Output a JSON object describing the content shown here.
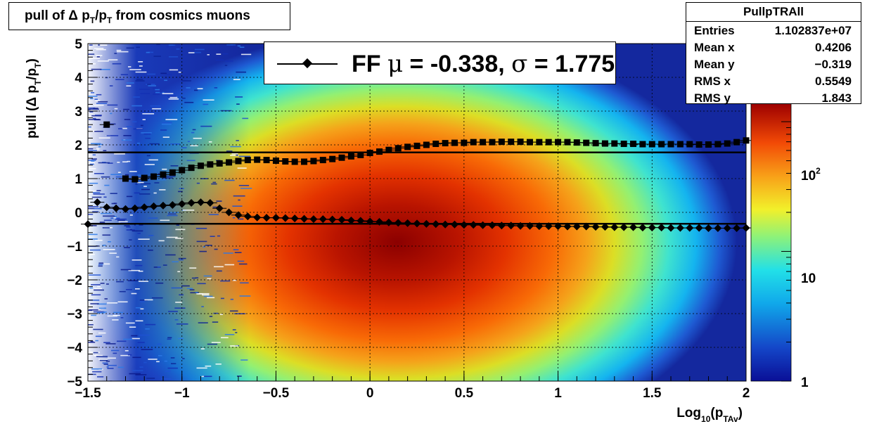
{
  "title": "pull of Δ p_T/p_T from cosmics muons",
  "title_parts": {
    "pre": "pull of Δ p",
    "sub1": "T",
    "mid": "/p",
    "sub2": "T",
    "post": " from cosmics muons"
  },
  "stats": {
    "name": "PullpTRAll",
    "rows": [
      {
        "label": "Entries",
        "value": "1.102837e+07"
      },
      {
        "label": "Mean x",
        "value": "0.4206"
      },
      {
        "label": "Mean y",
        "value": "−0.319"
      },
      {
        "label": "RMS x",
        "value": "0.5549"
      },
      {
        "label": "RMS y",
        "value": "1.843"
      }
    ]
  },
  "legend": {
    "prefix": "FF ",
    "mu": "μ",
    "mid": " = -0.338, ",
    "sigma": "σ",
    "post": " =   1.775"
  },
  "axes": {
    "x_label": {
      "pre": "Log",
      "sub": "10",
      "mid": "(p",
      "sub2": "TAv",
      "post": ")"
    },
    "y_label": {
      "pre": "pull (Δ p",
      "sub1": "T",
      "mid": "/p",
      "sub2": "T",
      "post": ")"
    },
    "x_ticks": [
      "−1.5",
      "−1",
      "−0.5",
      "0",
      "0.5",
      "1",
      "1.5",
      "2"
    ],
    "y_ticks": [
      "−5",
      "−4",
      "−3",
      "−2",
      "−1",
      "0",
      "1",
      "2",
      "3",
      "4",
      "5"
    ],
    "z_ticks": [
      "1",
      "10",
      "10^2"
    ]
  },
  "colors": {
    "frame": "#000000",
    "markers": "#000000"
  },
  "chart_data": {
    "type": "heatmap",
    "title": "pull of Δ p_T/p_T from cosmics muons",
    "xlabel": "Log10(p_TAv)",
    "ylabel": "pull (Δ p_T/p_T)",
    "xlim": [
      -1.5,
      2.0
    ],
    "ylim": [
      -5,
      5
    ],
    "z_scale": "log",
    "zlim": [
      1,
      400
    ],
    "colormap": "rainbow",
    "grid": true,
    "legend_position": "top-center",
    "density_peak": {
      "x": 0.3,
      "y": -0.8
    },
    "fit_lines": [
      {
        "name": "FF μ",
        "y": -0.338
      },
      {
        "name": "FF σ",
        "y": 1.775
      }
    ],
    "series": [
      {
        "marker": "square",
        "x": [
          -1.4,
          -1.3,
          -1.25,
          -1.2,
          -1.15,
          -1.1,
          -1.05,
          -1.0,
          -0.95,
          -0.9,
          -0.85,
          -0.8,
          -0.75,
          -0.7,
          -0.65,
          -0.6,
          -0.55,
          -0.5,
          -0.45,
          -0.4,
          -0.35,
          -0.3,
          -0.25,
          -0.2,
          -0.15,
          -0.1,
          -0.05,
          0.0,
          0.05,
          0.1,
          0.15,
          0.2,
          0.25,
          0.3,
          0.35,
          0.4,
          0.45,
          0.5,
          0.55,
          0.6,
          0.65,
          0.7,
          0.75,
          0.8,
          0.85,
          0.9,
          0.95,
          1.0,
          1.05,
          1.1,
          1.15,
          1.2,
          1.25,
          1.3,
          1.35,
          1.4,
          1.45,
          1.5,
          1.55,
          1.6,
          1.65,
          1.7,
          1.75,
          1.8,
          1.85,
          1.9,
          1.95,
          2.0
        ],
        "y": [
          2.6,
          1.0,
          0.98,
          1.02,
          1.06,
          1.12,
          1.18,
          1.25,
          1.32,
          1.38,
          1.42,
          1.45,
          1.48,
          1.52,
          1.55,
          1.56,
          1.55,
          1.53,
          1.51,
          1.5,
          1.5,
          1.52,
          1.55,
          1.58,
          1.62,
          1.66,
          1.7,
          1.76,
          1.8,
          1.85,
          1.9,
          1.94,
          1.97,
          2.0,
          2.03,
          2.05,
          2.06,
          2.06,
          2.08,
          2.08,
          2.08,
          2.09,
          2.09,
          2.09,
          2.08,
          2.08,
          2.08,
          2.08,
          2.08,
          2.07,
          2.06,
          2.05,
          2.04,
          2.04,
          2.03,
          2.03,
          2.02,
          2.02,
          2.02,
          2.02,
          2.02,
          2.02,
          2.01,
          2.01,
          2.02,
          2.04,
          2.08,
          2.13
        ]
      },
      {
        "marker": "diamond",
        "x": [
          -1.5,
          -1.45,
          -1.4,
          -1.35,
          -1.3,
          -1.25,
          -1.2,
          -1.15,
          -1.1,
          -1.05,
          -1.0,
          -0.95,
          -0.9,
          -0.85,
          -0.8,
          -0.75,
          -0.7,
          -0.65,
          -0.6,
          -0.55,
          -0.5,
          -0.45,
          -0.4,
          -0.35,
          -0.3,
          -0.25,
          -0.2,
          -0.15,
          -0.1,
          -0.05,
          0.0,
          0.05,
          0.1,
          0.15,
          0.2,
          0.25,
          0.3,
          0.35,
          0.4,
          0.45,
          0.5,
          0.55,
          0.6,
          0.65,
          0.7,
          0.75,
          0.8,
          0.85,
          0.9,
          0.95,
          1.0,
          1.05,
          1.1,
          1.15,
          1.2,
          1.25,
          1.3,
          1.35,
          1.4,
          1.45,
          1.5,
          1.55,
          1.6,
          1.65,
          1.7,
          1.75,
          1.8,
          1.85,
          1.9,
          1.95,
          2.0
        ],
        "y": [
          -0.35,
          0.3,
          0.15,
          0.12,
          0.1,
          0.12,
          0.15,
          0.18,
          0.2,
          0.22,
          0.25,
          0.28,
          0.3,
          0.28,
          0.12,
          0.0,
          -0.08,
          -0.12,
          -0.15,
          -0.16,
          -0.16,
          -0.17,
          -0.18,
          -0.19,
          -0.2,
          -0.2,
          -0.21,
          -0.22,
          -0.24,
          -0.25,
          -0.27,
          -0.28,
          -0.3,
          -0.31,
          -0.32,
          -0.33,
          -0.34,
          -0.35,
          -0.36,
          -0.36,
          -0.37,
          -0.37,
          -0.38,
          -0.38,
          -0.39,
          -0.39,
          -0.4,
          -0.4,
          -0.41,
          -0.41,
          -0.41,
          -0.42,
          -0.42,
          -0.42,
          -0.43,
          -0.43,
          -0.44,
          -0.44,
          -0.44,
          -0.45,
          -0.45,
          -0.45,
          -0.46,
          -0.46,
          -0.46,
          -0.46,
          -0.47,
          -0.47,
          -0.47,
          -0.47,
          -0.46
        ]
      }
    ]
  }
}
